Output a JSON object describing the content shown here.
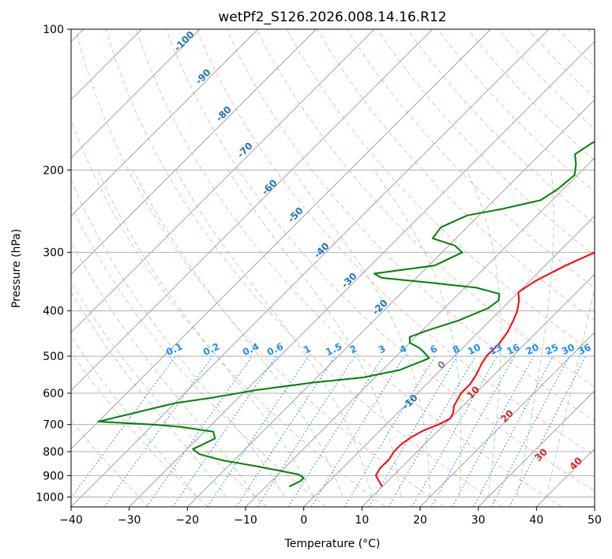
{
  "chart_data": {
    "type": "line",
    "title": "wetPf2_S126.2026.008.14.16.R12",
    "xlabel": "Temperature (°C)",
    "ylabel": "Pressure (hPa)",
    "xlim": [
      -40,
      50
    ],
    "ylim": [
      1050,
      100
    ],
    "y_scale": "log",
    "x_ticks": [
      -40,
      -30,
      -20,
      -10,
      0,
      10,
      20,
      30,
      40,
      50
    ],
    "y_ticks": [
      1000,
      900,
      800,
      700,
      600,
      500,
      400,
      300,
      200,
      100
    ],
    "grid": true,
    "series": [
      {
        "color": "#ff0000",
        "points": [
          [
            10,
            950
          ],
          [
            8.5,
            925
          ],
          [
            7,
            900
          ],
          [
            6.5,
            870
          ],
          [
            6.5,
            830
          ],
          [
            6,
            800
          ],
          [
            6,
            770
          ],
          [
            6.5,
            745
          ],
          [
            7.5,
            720
          ],
          [
            9,
            700
          ],
          [
            10,
            680
          ],
          [
            9.5,
            660
          ],
          [
            8.5,
            640
          ],
          [
            8,
            620
          ],
          [
            7.5,
            600
          ],
          [
            7.5,
            575
          ],
          [
            7,
            550
          ],
          [
            6,
            520
          ],
          [
            5.5,
            500
          ],
          [
            5.5,
            470
          ],
          [
            5,
            445
          ],
          [
            4,
            420
          ],
          [
            3,
            400
          ],
          [
            1.5,
            380
          ],
          [
            0,
            365
          ],
          [
            1,
            345
          ],
          [
            3.5,
            320
          ],
          [
            7,
            295
          ],
          [
            9,
            275
          ],
          [
            10,
            255
          ],
          [
            9,
            235
          ],
          [
            7.5,
            220
          ],
          [
            5.5,
            210
          ],
          [
            5,
            200
          ],
          [
            5.5,
            190
          ],
          [
            6,
            180
          ],
          [
            6,
            170
          ],
          [
            5.5,
            160
          ],
          [
            5.5,
            150
          ],
          [
            6.5,
            140
          ],
          [
            7.5,
            130
          ],
          [
            9,
            120
          ],
          [
            10,
            110
          ],
          [
            11,
            100
          ]
        ]
      },
      {
        "color": "#008000",
        "points": [
          [
            -6,
            950
          ],
          [
            -5,
            925
          ],
          [
            -5,
            910
          ],
          [
            -6.5,
            895
          ],
          [
            -10,
            880
          ],
          [
            -15,
            860
          ],
          [
            -22,
            835
          ],
          [
            -27,
            810
          ],
          [
            -29,
            790
          ],
          [
            -28,
            770
          ],
          [
            -27,
            750
          ],
          [
            -28.5,
            725
          ],
          [
            -35,
            708
          ],
          [
            -40,
            700
          ],
          [
            -50,
            690
          ],
          [
            -40,
            630
          ],
          [
            -35,
            615
          ],
          [
            -28,
            590
          ],
          [
            -20,
            570
          ],
          [
            -12,
            555
          ],
          [
            -7,
            535
          ],
          [
            -4,
            505
          ],
          [
            -6,
            490
          ],
          [
            -7.5,
            480
          ],
          [
            -10,
            468
          ],
          [
            -11,
            455
          ],
          [
            -9,
            440
          ],
          [
            -5.5,
            420
          ],
          [
            -2.5,
            395
          ],
          [
            -2,
            380
          ],
          [
            -3,
            368
          ],
          [
            -8,
            357
          ],
          [
            -17,
            348
          ],
          [
            -26,
            340
          ],
          [
            -28,
            333
          ],
          [
            -19,
            320
          ],
          [
            -16.5,
            300
          ],
          [
            -19,
            290
          ],
          [
            -24,
            280
          ],
          [
            -24.5,
            265
          ],
          [
            -22,
            250
          ],
          [
            -17,
            242
          ],
          [
            -12,
            232
          ],
          [
            -11,
            220
          ],
          [
            -10.5,
            205
          ],
          [
            -12,
            195
          ],
          [
            -14,
            185
          ],
          [
            -13,
            175
          ],
          [
            -10,
            165
          ],
          [
            -9.5,
            150
          ],
          [
            -9,
            140
          ],
          [
            -6.5,
            130
          ],
          [
            -4,
            120
          ],
          [
            -1.5,
            110
          ],
          [
            0.5,
            100
          ]
        ]
      }
    ],
    "isotherm_labels": [
      "-100",
      "-90",
      "-80",
      "-70",
      "-60",
      "-50",
      "-40",
      "-30",
      "-20",
      "-10",
      "0",
      "10",
      "20",
      "30",
      "40"
    ],
    "mixing_ratio_labels": [
      "0.1",
      "0.2",
      "0.4",
      "0.6",
      "1",
      "1.5",
      "2",
      "3",
      "4",
      "6",
      "8",
      "10",
      "13",
      "16",
      "20",
      "25",
      "30",
      "36"
    ],
    "colors": {
      "isotherm_cold_labels": "#1f77b4",
      "isotherm_zero_label": "#7f7f7f",
      "isotherm_warm_labels": "#d62728",
      "mixing_ratio": "#1e90ff",
      "dry_adiabat": "#fa8072",
      "moist_adiabat": "#90c890",
      "isotherm_lines": "#999999"
    }
  }
}
